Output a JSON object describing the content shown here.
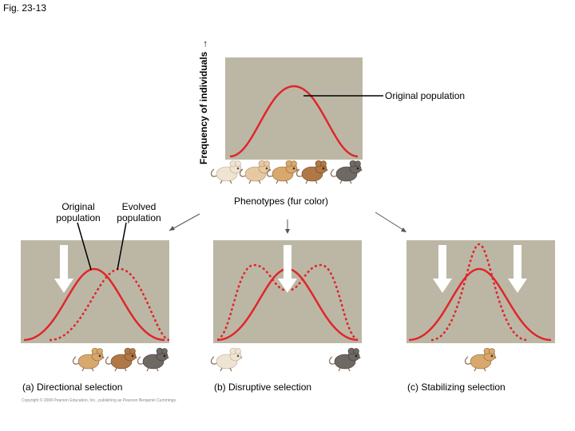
{
  "figure_label": "Fig. 23-13",
  "y_axis_label": "Frequency of individuals",
  "top": {
    "original_population_label": "Original population",
    "phenotypes_label": "Phenotypes (fur color)"
  },
  "panel_a": {
    "original_label": "Original population",
    "evolved_label": "Evolved population",
    "caption": "(a) Directional selection"
  },
  "panel_b": {
    "caption": "(b) Disruptive selection"
  },
  "panel_c": {
    "caption": "(c) Stabilizing selection"
  },
  "copyright": "Copyright © 2008 Pearson Education, Inc., publishing as Pearson Benjamin Cummings.",
  "colors": {
    "panel": "#bcb7a5",
    "curve": "#e0262a",
    "arrow": "#ffffff",
    "mouse_light": "#efe4d2",
    "mouse_tan": "#d9a86c",
    "mouse_brown": "#b07846",
    "mouse_dark": "#6f6963"
  },
  "icons": [
    "mouse-icon",
    "selection-arrow-icon"
  ]
}
